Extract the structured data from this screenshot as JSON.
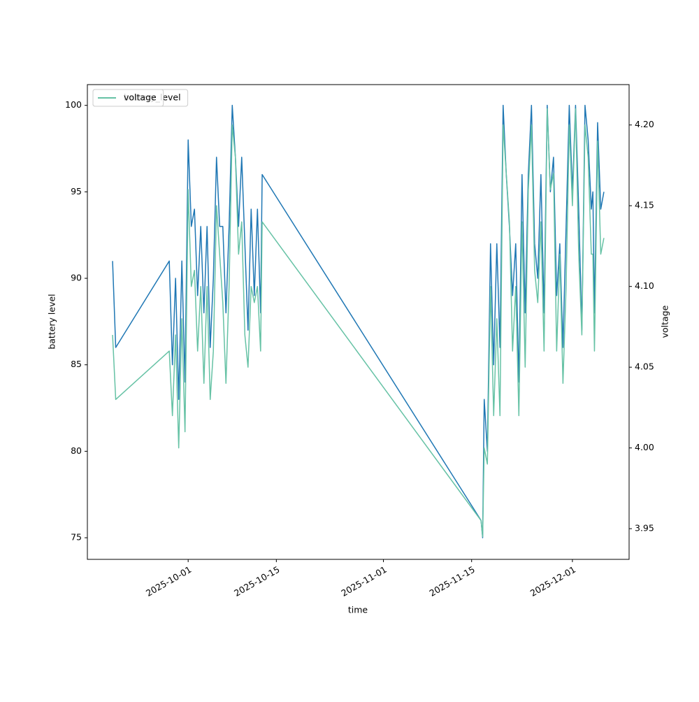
{
  "chart_data": {
    "type": "line",
    "x_label": "time",
    "y_label": "battery level",
    "y2_label": "voltage",
    "x": [
      "2025-09-19 00:00",
      "2025-09-19 12:00",
      "2025-09-28 00:00",
      "2025-09-28 12:00",
      "2025-09-29 00:00",
      "2025-09-29 12:00",
      "2025-09-30 00:00",
      "2025-09-30 12:00",
      "2025-10-01 00:00",
      "2025-10-01 12:00",
      "2025-10-02 00:00",
      "2025-10-02 12:00",
      "2025-10-03 00:00",
      "2025-10-03 12:00",
      "2025-10-04 00:00",
      "2025-10-04 12:00",
      "2025-10-05 00:00",
      "2025-10-05 12:00",
      "2025-10-06 00:00",
      "2025-10-06 12:00",
      "2025-10-07 00:00",
      "2025-10-07 12:00",
      "2025-10-08 00:00",
      "2025-10-08 12:00",
      "2025-10-09 00:00",
      "2025-10-09 12:00",
      "2025-10-10 00:00",
      "2025-10-10 12:00",
      "2025-10-11 00:00",
      "2025-10-11 12:00",
      "2025-10-12 00:00",
      "2025-10-12 12:00",
      "2025-10-12 18:00",
      "2025-11-16 12:00",
      "2025-11-16 18:00",
      "2025-11-17 00:00",
      "2025-11-17 12:00",
      "2025-11-18 00:00",
      "2025-11-18 12:00",
      "2025-11-19 00:00",
      "2025-11-19 12:00",
      "2025-11-20 00:00",
      "2025-11-20 12:00",
      "2025-11-21 00:00",
      "2025-11-21 12:00",
      "2025-11-22 00:00",
      "2025-11-22 12:00",
      "2025-11-23 00:00",
      "2025-11-23 12:00",
      "2025-11-24 00:00",
      "2025-11-24 12:00",
      "2025-11-25 00:00",
      "2025-11-25 12:00",
      "2025-11-26 00:00",
      "2025-11-26 12:00",
      "2025-11-27 00:00",
      "2025-11-27 12:00",
      "2025-11-28 00:00",
      "2025-11-28 12:00",
      "2025-11-29 00:00",
      "2025-11-29 12:00",
      "2025-11-30 00:00",
      "2025-11-30 12:00",
      "2025-12-01 00:00",
      "2025-12-01 12:00",
      "2025-12-02 00:00",
      "2025-12-02 12:00",
      "2025-12-03 00:00",
      "2025-12-03 12:00",
      "2025-12-04 00:00",
      "2025-12-04 06:00",
      "2025-12-04 12:00",
      "2025-12-05 00:00",
      "2025-12-05 12:00",
      "2025-12-06 00:00"
    ],
    "series": [
      {
        "name": "battery_level",
        "color": "#1f77b4",
        "axis": "y",
        "values": [
          91,
          86,
          91,
          85,
          90,
          83,
          91,
          84,
          98,
          93,
          94,
          89,
          93,
          88,
          93,
          86,
          90,
          97,
          93,
          93,
          88,
          93,
          100,
          97,
          93,
          97,
          92,
          87,
          94,
          89,
          94,
          88,
          96,
          76,
          75,
          83,
          80,
          92,
          85,
          92,
          86,
          100,
          96,
          93,
          89,
          92,
          84,
          96,
          88,
          96,
          100,
          92,
          90,
          96,
          88,
          100,
          95,
          97,
          89,
          92,
          86,
          93,
          100,
          95,
          100,
          94,
          87,
          100,
          98,
          94,
          95,
          88,
          99,
          94,
          95
        ]
      },
      {
        "name": "voltage",
        "color": "#66c2a5",
        "axis": "y2",
        "values": [
          4.07,
          4.03,
          4.06,
          4.02,
          4.07,
          4.0,
          4.08,
          4.01,
          4.16,
          4.1,
          4.11,
          4.06,
          4.1,
          4.04,
          4.1,
          4.03,
          4.06,
          4.15,
          4.12,
          4.09,
          4.04,
          4.1,
          4.2,
          4.18,
          4.12,
          4.14,
          4.07,
          4.05,
          4.1,
          4.09,
          4.1,
          4.06,
          4.14,
          3.955,
          3.945,
          4.0,
          3.99,
          4.1,
          4.02,
          4.08,
          4.02,
          4.2,
          4.17,
          4.14,
          4.06,
          4.1,
          4.02,
          4.14,
          4.05,
          4.16,
          4.2,
          4.11,
          4.09,
          4.14,
          4.06,
          4.21,
          4.16,
          4.17,
          4.06,
          4.12,
          4.04,
          4.1,
          4.2,
          4.15,
          4.21,
          4.12,
          4.07,
          4.2,
          4.18,
          4.12,
          4.12,
          4.06,
          4.19,
          4.12,
          4.13
        ]
      }
    ],
    "xlim": [
      "2025-09-15",
      "2025-12-10"
    ],
    "xticks": [
      "2025-10-01",
      "2025-10-15",
      "2025-11-01",
      "2025-11-15",
      "2025-12-01"
    ],
    "ylim": [
      73.75,
      101.2
    ],
    "yticks": [
      75,
      80,
      85,
      90,
      95,
      100
    ],
    "y2lim": [
      3.931,
      4.225
    ],
    "y2ticks": [
      {
        "value": 3.95,
        "label": "3.95"
      },
      {
        "value": 4.0,
        "label": "4.00"
      },
      {
        "value": 4.05,
        "label": "4.05"
      },
      {
        "value": 4.1,
        "label": "4.10"
      },
      {
        "value": 4.15,
        "label": "4.15"
      },
      {
        "value": 4.2,
        "label": "4.20"
      }
    ],
    "legend": "upper left",
    "grid": false
  }
}
